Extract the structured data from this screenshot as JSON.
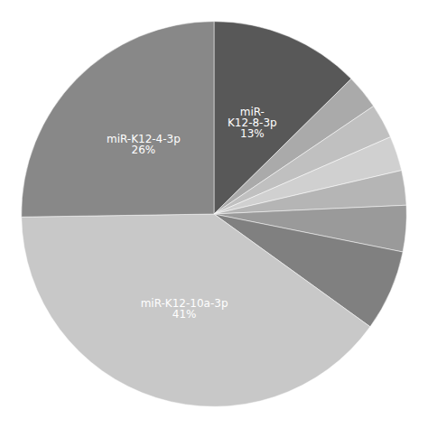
{
  "chart_data": {
    "type": "pie",
    "categories": [
      "miR-\nK12-8-3p",
      null,
      null,
      null,
      null,
      null,
      null,
      "miR-K12-10a-3p",
      "miR-K12-4-3p"
    ],
    "values": [
      13,
      3,
      3,
      3,
      3,
      4,
      7,
      41,
      26
    ],
    "value_labels": [
      "13%",
      null,
      null,
      null,
      null,
      null,
      null,
      "41%",
      "26%"
    ],
    "colors": [
      "#585858",
      "#aaaaaa",
      "#c0c0c0",
      "#d0d0d0",
      "#b5b5b5",
      "#9a9a9a",
      "#808080",
      "#c8c8c8",
      "#888888"
    ],
    "data_labels": true
  }
}
